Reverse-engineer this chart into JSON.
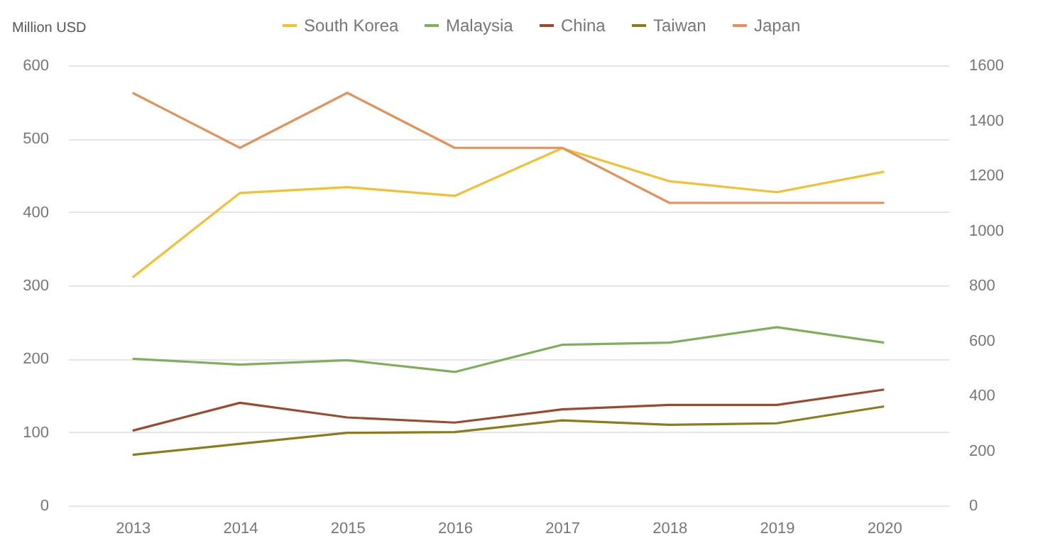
{
  "chart_data": {
    "type": "line",
    "ylabel": "Million USD",
    "categories": [
      "2013",
      "2014",
      "2015",
      "2016",
      "2017",
      "2018",
      "2019",
      "2020"
    ],
    "series": [
      {
        "name": "South Korea",
        "color": "#f2c132",
        "values": [
          311,
          426,
          434,
          422,
          487,
          442,
          427,
          455
        ]
      },
      {
        "name": "Malaysia",
        "color": "#7fae5c",
        "values": [
          200,
          192,
          198,
          182,
          219,
          222,
          243,
          222
        ]
      },
      {
        "name": "China",
        "color": "#9a4b2f",
        "values": [
          102,
          140,
          120,
          113,
          131,
          137,
          137,
          158
        ]
      },
      {
        "name": "Taiwan",
        "color": "#8c7d1c",
        "values": [
          69,
          84,
          99,
          100,
          116,
          110,
          112,
          135
        ]
      },
      {
        "name": "Japan",
        "color": "#e2935c",
        "axis": "y2",
        "values": [
          1500,
          1300,
          1500,
          1300,
          1300,
          1100,
          1100,
          1100
        ]
      }
    ],
    "ylim": [
      0,
      600
    ],
    "yticks": [
      0,
      100,
      200,
      300,
      400,
      500,
      600
    ],
    "y2lim": [
      0,
      1600
    ],
    "y2ticks": [
      0,
      200,
      400,
      600,
      800,
      1000,
      1200,
      1400,
      1600
    ],
    "grid": "y",
    "legend": "top",
    "marker": "none",
    "line_style": "solid"
  }
}
